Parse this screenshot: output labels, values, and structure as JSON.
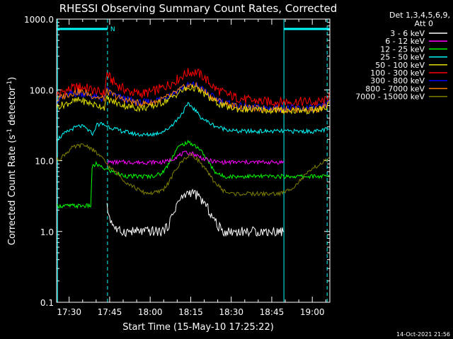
{
  "chart_data": {
    "type": "line",
    "title": "RHESSI Observing Summary Count Rates, Corrected",
    "xlabel": "Start Time (15-May-10 17:25:22)",
    "ylabel_parts": [
      "Corrected Count Rate (s",
      "-1",
      " detector",
      "-1",
      ")"
    ],
    "yscale": "log",
    "ylim": [
      0.1,
      1000
    ],
    "xlim_min": [
      25.37,
      126.5
    ],
    "yticks": [
      {
        "v": 1000,
        "label": "1000.0"
      },
      {
        "v": 100,
        "label": "100.0"
      },
      {
        "v": 10,
        "label": "10.0"
      },
      {
        "v": 1,
        "label": "1.0"
      },
      {
        "v": 0.1,
        "label": "0.1"
      }
    ],
    "xticks": [
      {
        "m": 30,
        "label": "17:30"
      },
      {
        "m": 45,
        "label": "17:45"
      },
      {
        "m": 60,
        "label": "18:00"
      },
      {
        "m": 75,
        "label": "18:15"
      },
      {
        "m": 90,
        "label": "18:30"
      },
      {
        "m": 105,
        "label": "18:45"
      },
      {
        "m": 120,
        "label": "19:00"
      }
    ],
    "legend": {
      "placement": "right",
      "header": [
        "Det 1,3,4,5,6,9,",
        "Att 0"
      ],
      "entries": [
        {
          "label": "3 - 6 keV",
          "color": "#ffffff"
        },
        {
          "label": "6 - 12 keV",
          "color": "#ff00ff"
        },
        {
          "label": "12 - 25 keV",
          "color": "#00ff00"
        },
        {
          "label": "25 - 50 keV",
          "color": "#00ffff"
        },
        {
          "label": "50 - 100 keV",
          "color": "#e0e000"
        },
        {
          "label": "100 - 300 keV",
          "color": "#ff0000"
        },
        {
          "label": "300 - 800 keV",
          "color": "#0000ff"
        },
        {
          "label": "800 - 7000 keV",
          "color": "#ff8000"
        },
        {
          "label": "7000 - 15000 keV",
          "color": "#808000"
        }
      ]
    },
    "annotations": {
      "night_bars": [
        [
          25.37,
          44.2
        ],
        [
          109.5,
          126.5
        ]
      ],
      "night_label": "N",
      "dashed_lines_min": [
        44.2,
        125.5
      ],
      "solid_lines_min": [
        25.7,
        109.5
      ],
      "flag_color": "#00ffff"
    },
    "series": [
      {
        "key": "s5_100_300",
        "color": "#ff0000",
        "x": [
          25.4,
          28,
          31,
          34,
          37,
          39,
          41,
          43,
          44,
          45.5,
          48,
          52,
          56,
          60,
          64,
          68,
          70,
          72,
          74,
          76,
          77,
          78,
          80,
          82,
          84,
          86,
          88,
          90,
          92,
          94,
          96,
          98,
          100,
          102,
          104,
          106,
          108,
          109.5,
          111,
          113,
          115,
          117,
          119,
          121,
          123,
          125,
          126.3
        ],
        "y": [
          85,
          95,
          105,
          110,
          105,
          98,
          92,
          88,
          170,
          140,
          115,
          95,
          88,
          92,
          105,
          125,
          140,
          160,
          175,
          180,
          178,
          170,
          150,
          125,
          105,
          95,
          88,
          82,
          78,
          75,
          72,
          70,
          70,
          68,
          68,
          68,
          68,
          68,
          68,
          68,
          68,
          68,
          68,
          65,
          68,
          70,
          90
        ]
      },
      {
        "key": "s6_300_800",
        "color": "#0000ff",
        "x": [
          25.4,
          28,
          31,
          34,
          37,
          39,
          41,
          43,
          44,
          45.5,
          48,
          52,
          56,
          60,
          64,
          68,
          70,
          72,
          74,
          76,
          77,
          78,
          80,
          82,
          84,
          86,
          88,
          90,
          92,
          94,
          96,
          98,
          100,
          102,
          104,
          106,
          108,
          109.5,
          111,
          113,
          115,
          117,
          119,
          121,
          123,
          125,
          126.3
        ],
        "y": [
          70,
          80,
          88,
          90,
          85,
          80,
          76,
          74,
          100,
          90,
          80,
          72,
          66,
          68,
          75,
          88,
          98,
          108,
          115,
          118,
          115,
          110,
          98,
          85,
          76,
          70,
          66,
          62,
          60,
          58,
          57,
          56,
          56,
          56,
          55,
          56,
          55,
          55,
          55,
          55,
          55,
          55,
          55,
          55,
          57,
          60,
          70
        ]
      },
      {
        "key": "s7_800_7000",
        "color": "#ff8000",
        "x": [
          25.4,
          28,
          31,
          34,
          37,
          39,
          41,
          43,
          44,
          45.5,
          48,
          52,
          56,
          60,
          64,
          68,
          70,
          72,
          74,
          76,
          77,
          78,
          80,
          82,
          84,
          86,
          88,
          90,
          92,
          94,
          96,
          98,
          100,
          102,
          104,
          106,
          108,
          109.5,
          111,
          113,
          115,
          117,
          119,
          121,
          123,
          125,
          126.3
        ],
        "y": [
          72,
          82,
          90,
          95,
          88,
          82,
          78,
          75,
          95,
          88,
          78,
          70,
          64,
          65,
          72,
          84,
          95,
          105,
          112,
          115,
          112,
          106,
          95,
          82,
          74,
          68,
          64,
          60,
          58,
          56,
          55,
          54,
          54,
          54,
          53,
          54,
          53,
          53,
          53,
          53,
          53,
          53,
          53,
          53,
          55,
          58,
          68
        ]
      },
      {
        "key": "s4_50_100",
        "color": "#e0e000",
        "x": [
          25.4,
          28,
          31,
          34,
          37,
          39,
          41,
          43,
          44,
          45.5,
          48,
          52,
          56,
          60,
          64,
          68,
          70,
          72,
          74,
          76,
          77,
          78,
          80,
          82,
          84,
          86,
          88,
          90,
          92,
          94,
          96,
          98,
          100,
          102,
          104,
          106,
          108,
          109.5,
          111,
          113,
          115,
          117,
          119,
          121,
          123,
          125,
          126.3
        ],
        "y": [
          58,
          62,
          68,
          72,
          66,
          62,
          60,
          57,
          75,
          70,
          64,
          58,
          55,
          57,
          65,
          78,
          88,
          98,
          105,
          108,
          104,
          98,
          88,
          76,
          68,
          62,
          58,
          56,
          54,
          53,
          53,
          52,
          52,
          52,
          51,
          52,
          51,
          51,
          51,
          51,
          51,
          51,
          51,
          52,
          53,
          55,
          65
        ]
      },
      {
        "key": "s3_25_50",
        "color": "#00ffff",
        "x": [
          25.4,
          27,
          29,
          31,
          33,
          34,
          35,
          36,
          37,
          38,
          39,
          40,
          42,
          44,
          46,
          48,
          50,
          54,
          58,
          62,
          66,
          68,
          70,
          72,
          73,
          74,
          75,
          76,
          77,
          78,
          80,
          82,
          84,
          86,
          88,
          90,
          92,
          94,
          96,
          98,
          100,
          102,
          104,
          106,
          108,
          110,
          112,
          114,
          116,
          118,
          120,
          122,
          124,
          126.3
        ],
        "y": [
          20,
          22,
          25,
          28,
          30,
          31,
          30,
          29,
          27,
          25,
          24,
          32,
          33,
          31,
          29,
          27,
          26,
          24,
          23,
          24,
          27,
          32,
          38,
          48,
          55,
          62,
          60,
          55,
          50,
          44,
          38,
          34,
          31,
          29,
          28,
          27,
          26,
          26,
          26,
          26,
          26,
          26,
          26,
          26,
          26,
          26,
          26,
          26,
          26,
          26,
          26,
          26,
          27,
          28
        ]
      },
      {
        "key": "s2_12_25",
        "color": "#00ff00",
        "x": [
          25.4,
          30,
          34,
          37,
          38,
          38.5,
          40,
          42,
          44,
          46,
          48,
          52,
          56,
          60,
          64,
          66,
          68,
          70,
          72,
          74,
          76,
          78,
          80,
          82,
          84,
          86,
          88,
          90,
          94,
          98,
          102,
          106,
          108,
          109.5,
          110.5,
          126.3
        ],
        "y": [
          2.3,
          2.3,
          2.3,
          2.3,
          2.3,
          8,
          9,
          8,
          7.5,
          7,
          6.5,
          6,
          6,
          6,
          6.5,
          8,
          11,
          15,
          17,
          18,
          17,
          15,
          12,
          9,
          7,
          6.2,
          6,
          6,
          6,
          6,
          6,
          6,
          6,
          6,
          6,
          6
        ]
      },
      {
        "key": "s1_6_12",
        "color": "#ff00ff",
        "x": [
          44,
          46,
          48,
          52,
          56,
          60,
          64,
          66,
          68,
          70,
          72,
          74,
          76,
          78,
          80,
          82,
          84,
          86,
          88,
          90,
          94,
          98,
          102,
          106,
          108,
          109.5
        ],
        "y": [
          9.5,
          9.5,
          9.5,
          9.5,
          9.5,
          9.5,
          9.5,
          9.7,
          10.5,
          11.5,
          12.5,
          13,
          12.5,
          11.5,
          10.5,
          10,
          9.7,
          9.5,
          9.5,
          9.5,
          9.5,
          9.5,
          9.5,
          9.5,
          9.5,
          9.5
        ]
      },
      {
        "key": "s8_7000_15000",
        "color": "#808000",
        "x": [
          25.4,
          27,
          29,
          31,
          33,
          35,
          37,
          39,
          41,
          43,
          45,
          47,
          49,
          51,
          53,
          55,
          57,
          59,
          61,
          63,
          65,
          67,
          69,
          71,
          73,
          75,
          77,
          79,
          81,
          83,
          85,
          87,
          89,
          91,
          93,
          95,
          97,
          99,
          101,
          103,
          105,
          107,
          109,
          111,
          113,
          115,
          117,
          119,
          121,
          123,
          125,
          126.3
        ],
        "y": [
          10,
          11,
          13,
          15,
          16,
          16.5,
          16,
          14,
          12,
          10,
          8,
          7,
          6,
          5,
          4.5,
          4,
          3.6,
          3.5,
          3.5,
          3.6,
          4,
          5,
          7,
          9,
          11,
          12,
          11,
          9,
          7,
          5.5,
          4.5,
          3.8,
          3.5,
          3.4,
          3.4,
          3.4,
          3.4,
          3.4,
          3.4,
          3.4,
          3.4,
          3.4,
          3.5,
          3.8,
          4.3,
          5,
          6,
          7,
          8,
          9,
          10,
          11
        ]
      },
      {
        "key": "s0_3_6",
        "color": "#ffffff",
        "x": [
          44,
          45,
          46,
          48,
          50,
          52,
          56,
          60,
          64,
          66,
          67,
          68,
          69,
          70,
          71,
          72,
          73,
          74,
          75,
          76,
          77,
          78,
          79,
          80,
          81,
          82,
          83,
          84,
          85,
          86,
          87,
          88,
          90,
          94,
          98,
          102,
          106,
          108,
          109.5
        ],
        "y": [
          2.2,
          1.6,
          1.3,
          1.0,
          1.0,
          1.0,
          1.0,
          1.0,
          1.0,
          1.1,
          1.3,
          1.6,
          2.0,
          2.5,
          2.8,
          3.0,
          3.3,
          3.5,
          3.6,
          3.5,
          3.3,
          3.0,
          2.8,
          2.5,
          2.2,
          1.9,
          1.6,
          1.4,
          1.2,
          1.1,
          1.0,
          1.0,
          1.0,
          1.0,
          1.0,
          1.0,
          1.0,
          1.0,
          1.0
        ]
      }
    ]
  },
  "footer": {
    "date": "14-Oct-2021 21:56"
  }
}
